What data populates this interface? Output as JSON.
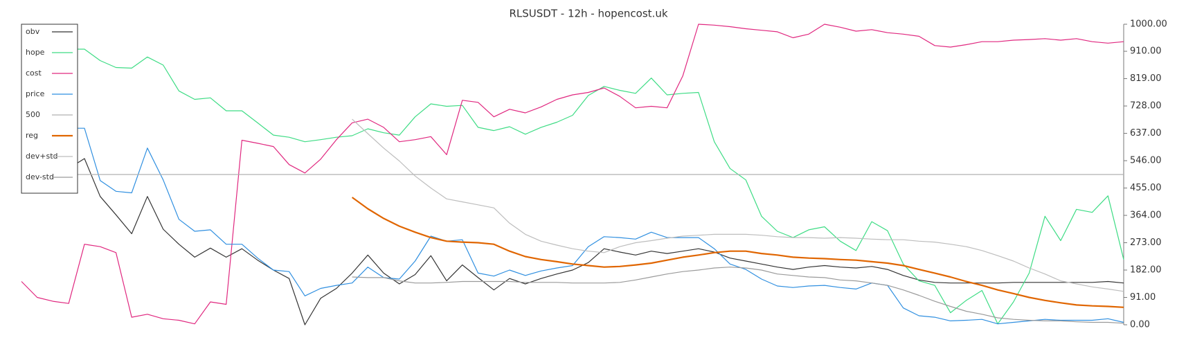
{
  "chart_data": {
    "type": "line",
    "title": "RLSUSDT - 12h - hopencost.uk",
    "ylim": [
      0,
      1000
    ],
    "yticks": [
      {
        "value": 0,
        "label": "0.00"
      },
      {
        "value": 91,
        "label": "91.00"
      },
      {
        "value": 182,
        "label": "182.00"
      },
      {
        "value": 273,
        "label": "273.00"
      },
      {
        "value": 364,
        "label": "364.00"
      },
      {
        "value": 455,
        "label": "455.00"
      },
      {
        "value": 546,
        "label": "546.00"
      },
      {
        "value": 637,
        "label": "637.00"
      },
      {
        "value": 728,
        "label": "728.00"
      },
      {
        "value": 819,
        "label": "819.00"
      },
      {
        "value": 910,
        "label": "910.00"
      },
      {
        "value": 1000,
        "label": "1000.00"
      }
    ],
    "legend": "top-left",
    "series": [
      {
        "name": "obv",
        "color": "#333333",
        "width": 1.2,
        "values": [
          510,
          530,
          545,
          520,
          553,
          427,
          366,
          303,
          427,
          318,
          268,
          225,
          255,
          225,
          253,
          215,
          182,
          154,
          0,
          88,
          121,
          172,
          232,
          172,
          136,
          167,
          230,
          146,
          199,
          157,
          116,
          154,
          136,
          154,
          169,
          182,
          207,
          253,
          242,
          232,
          245,
          237,
          245,
          253,
          242,
          222,
          212,
          202,
          192,
          184,
          192,
          197,
          192,
          189,
          194,
          184,
          164,
          149,
          141,
          139,
          139,
          139,
          139,
          141,
          141,
          141,
          141,
          141,
          141,
          144,
          139
        ]
      },
      {
        "name": "hope",
        "color": "#3ddc84",
        "width": 1.2,
        "values": [
          917,
          917,
          917,
          917,
          917,
          879,
          856,
          854,
          891,
          864,
          778,
          750,
          755,
          712,
          712,
          672,
          631,
          624,
          609,
          616,
          624,
          629,
          652,
          639,
          631,
          692,
          735,
          727,
          730,
          657,
          646,
          659,
          634,
          657,
          674,
          697,
          763,
          793,
          780,
          770,
          821,
          765,
          770,
          773,
          609,
          520,
          482,
          361,
          311,
          290,
          316,
          326,
          278,
          247,
          343,
          313,
          202,
          146,
          131,
          40,
          81,
          114,
          3,
          76,
          172,
          361,
          280,
          384,
          374,
          429,
          217
        ]
      },
      {
        "name": "cost",
        "color": "#e0277f",
        "width": 1.2,
        "values": [
          144,
          91,
          78,
          71,
          268,
          260,
          240,
          25,
          35,
          20,
          15,
          3,
          76,
          68,
          614,
          604,
          593,
          533,
          505,
          551,
          616,
          672,
          684,
          657,
          609,
          616,
          626,
          566,
          747,
          740,
          692,
          717,
          705,
          725,
          750,
          765,
          773,
          788,
          760,
          722,
          727,
          722,
          828,
          1000,
          997,
          992,
          985,
          980,
          975,
          955,
          967,
          1000,
          990,
          977,
          982,
          972,
          967,
          960,
          929,
          924,
          932,
          942,
          942,
          947,
          949,
          952,
          947,
          952,
          942,
          937,
          942
        ]
      },
      {
        "name": "price",
        "color": "#2f8fe0",
        "width": 1.2,
        "values": [
          654,
          654,
          654,
          654,
          654,
          480,
          444,
          439,
          588,
          482,
          351,
          311,
          316,
          268,
          268,
          222,
          182,
          177,
          96,
          121,
          131,
          139,
          192,
          157,
          152,
          212,
          295,
          278,
          283,
          172,
          162,
          182,
          164,
          179,
          189,
          197,
          260,
          293,
          290,
          285,
          308,
          290,
          290,
          290,
          253,
          202,
          184,
          152,
          129,
          124,
          129,
          131,
          124,
          119,
          139,
          131,
          56,
          30,
          25,
          13,
          15,
          18,
          3,
          8,
          13,
          18,
          15,
          15,
          15,
          20,
          8
        ]
      },
      {
        "name": "500",
        "color": "#b0b0b0",
        "width": 1.2,
        "values": [
          500,
          500,
          500,
          500,
          500,
          500,
          500,
          500,
          500,
          500,
          500,
          500,
          500,
          500,
          500,
          500,
          500,
          500,
          500,
          500,
          500,
          500,
          500,
          500,
          500,
          500,
          500,
          500,
          500,
          500,
          500,
          500,
          500,
          500,
          500,
          500,
          500,
          500,
          500,
          500,
          500,
          500,
          500,
          500,
          500,
          500,
          500,
          500,
          500,
          500,
          500,
          500,
          500,
          500,
          500,
          500,
          500,
          500,
          500,
          500,
          500,
          500,
          500,
          500,
          500,
          500,
          500,
          500,
          500,
          500,
          500
        ]
      },
      {
        "name": "reg",
        "color": "#e06500",
        "width": 2.2,
        "values": [
          null,
          null,
          null,
          null,
          null,
          null,
          null,
          null,
          null,
          null,
          null,
          null,
          null,
          null,
          null,
          null,
          null,
          null,
          null,
          null,
          null,
          424,
          386,
          354,
          328,
          308,
          290,
          278,
          275,
          273,
          268,
          245,
          227,
          217,
          210,
          202,
          197,
          192,
          194,
          199,
          205,
          215,
          225,
          232,
          240,
          245,
          245,
          237,
          232,
          225,
          222,
          220,
          217,
          215,
          210,
          205,
          197,
          184,
          172,
          159,
          144,
          131,
          116,
          104,
          91,
          81,
          73,
          66,
          63,
          61,
          58
        ]
      },
      {
        "name": "dev+std",
        "color": "#bdbdbd",
        "width": 1.2,
        "values": [
          null,
          null,
          null,
          null,
          null,
          null,
          null,
          null,
          null,
          null,
          null,
          null,
          null,
          null,
          null,
          null,
          null,
          null,
          null,
          null,
          null,
          684,
          636,
          588,
          545,
          495,
          455,
          419,
          409,
          399,
          389,
          338,
          301,
          278,
          265,
          253,
          245,
          240,
          260,
          273,
          280,
          288,
          295,
          298,
          301,
          301,
          301,
          298,
          293,
          290,
          290,
          288,
          290,
          288,
          285,
          283,
          283,
          278,
          275,
          268,
          260,
          247,
          230,
          212,
          189,
          169,
          146,
          136,
          126,
          119,
          111
        ]
      },
      {
        "name": "dev-std",
        "color": "#9a9a9a",
        "width": 1.2,
        "values": [
          null,
          null,
          null,
          null,
          null,
          null,
          null,
          null,
          null,
          null,
          null,
          null,
          null,
          null,
          null,
          null,
          null,
          null,
          null,
          null,
          null,
          159,
          157,
          157,
          146,
          139,
          139,
          141,
          144,
          144,
          144,
          144,
          141,
          141,
          141,
          139,
          139,
          139,
          141,
          149,
          159,
          169,
          177,
          182,
          189,
          192,
          189,
          182,
          169,
          164,
          159,
          157,
          149,
          146,
          139,
          131,
          116,
          98,
          78,
          61,
          45,
          35,
          23,
          18,
          15,
          13,
          13,
          10,
          8,
          8,
          5
        ]
      }
    ]
  }
}
